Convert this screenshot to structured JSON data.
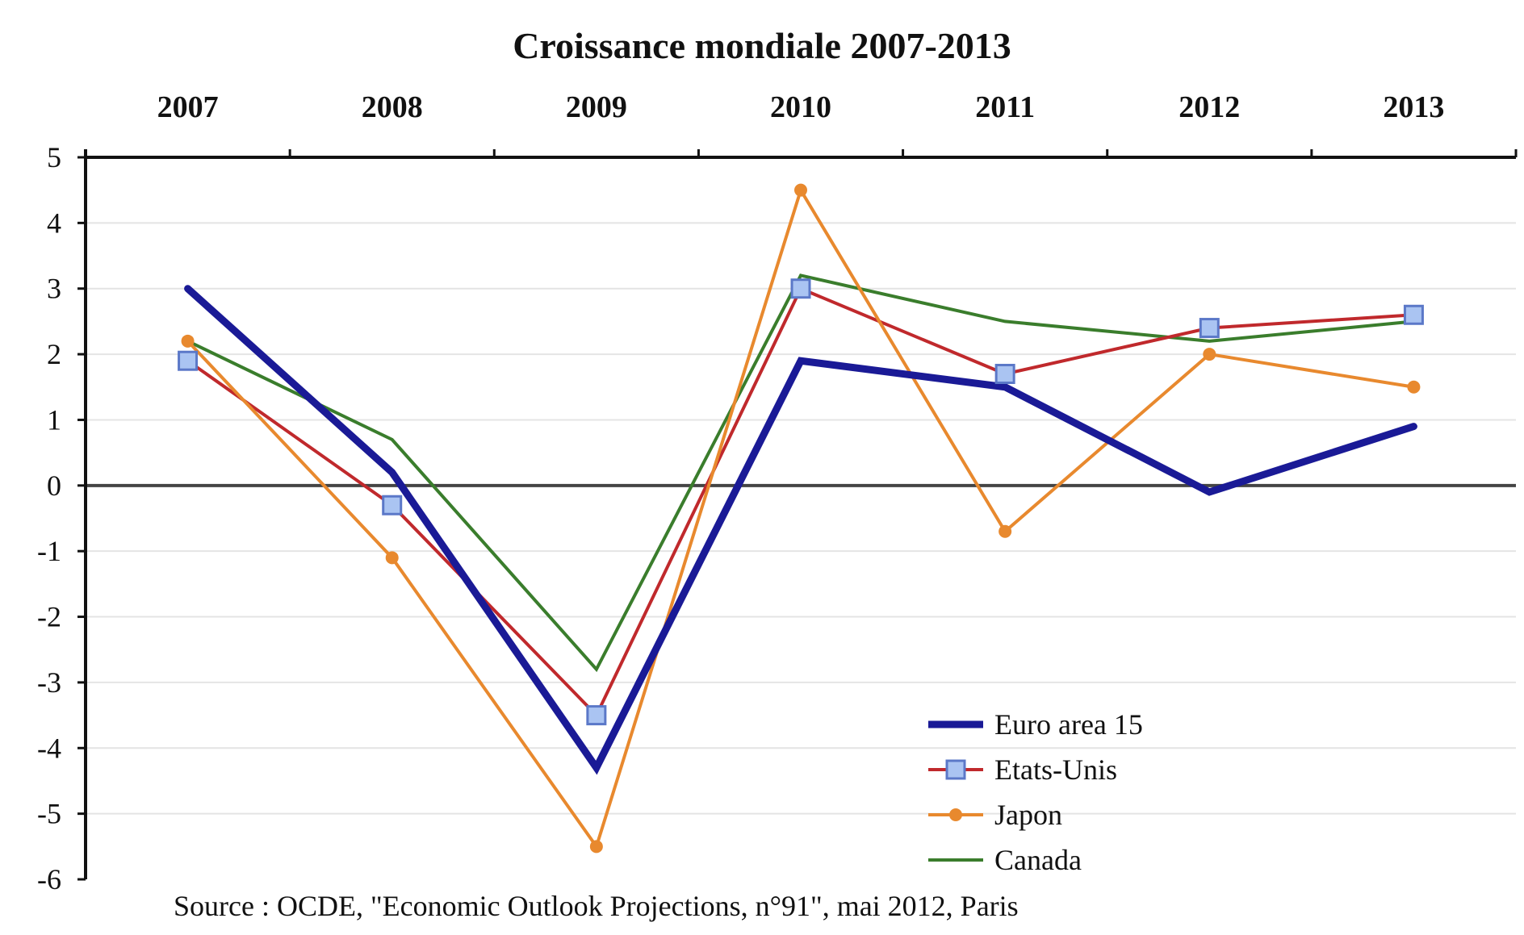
{
  "chart_data": {
    "type": "line",
    "title": "Croissance mondiale 2007-2013",
    "x": [
      "2007",
      "2008",
      "2009",
      "2010",
      "2011",
      "2012",
      "2013"
    ],
    "xlabel": "",
    "ylabel": "",
    "ylim": [
      -6,
      5
    ],
    "yticks": [
      5,
      4,
      3,
      2,
      1,
      0,
      -1,
      -2,
      -3,
      -4,
      -5,
      -6
    ],
    "x_axis_position": "top",
    "grid": true,
    "legend_position": "bottom-right",
    "series": [
      {
        "name": "Euro area 15",
        "values": [
          3.0,
          0.2,
          -4.3,
          1.9,
          1.5,
          -0.1,
          0.9
        ],
        "color": "#1a1a96",
        "marker": "none"
      },
      {
        "name": "Etats-Unis",
        "values": [
          1.9,
          -0.3,
          -3.5,
          3.0,
          1.7,
          2.4,
          2.6
        ],
        "color": "#c0292c",
        "marker": "square"
      },
      {
        "name": "Japon",
        "values": [
          2.2,
          -1.1,
          -5.5,
          4.5,
          -0.7,
          2.0,
          1.5
        ],
        "color": "#e8892e",
        "marker": "circle"
      },
      {
        "name": "Canada",
        "values": [
          2.2,
          0.7,
          -2.8,
          3.2,
          2.5,
          2.2,
          2.5
        ],
        "color": "#3a7d2c",
        "marker": "none"
      }
    ],
    "source": "Source : OCDE, \"Economic Outlook Projections, n°91\", mai 2012, Paris"
  }
}
